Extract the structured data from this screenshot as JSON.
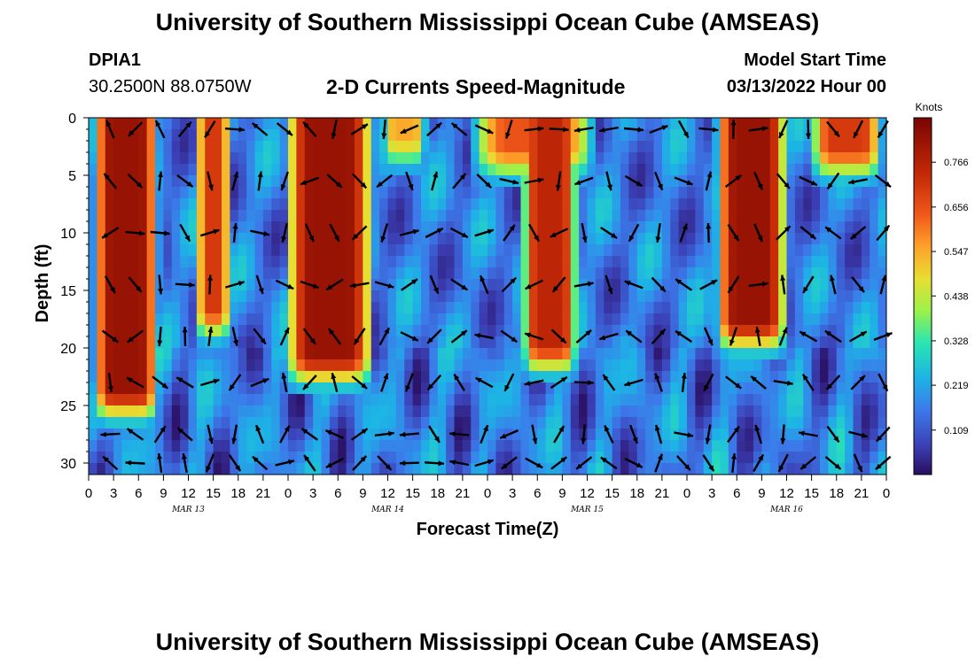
{
  "header": {
    "title": "University of Southern Mississippi Ocean Cube (AMSEAS)",
    "station": "DPIA1",
    "coords": "30.2500N  88.0750W",
    "chart_title": "2-D Currents Speed-Magnitude",
    "model_start_label": "Model Start Time",
    "model_start_value": "03/13/2022 Hour 00"
  },
  "footer_title": "University of Southern Mississippi Ocean Cube (AMSEAS)",
  "chart_data": {
    "type": "heatmap",
    "title": "2-D Currents Speed-Magnitude",
    "xlabel": "Forecast Time(Z)",
    "ylabel": "Depth (ft)",
    "colorbar_label": "Knots",
    "colorbar_ticks": [
      "0.109",
      "0.219",
      "0.328",
      "0.438",
      "0.547",
      "0.656",
      "0.766"
    ],
    "colorbar_range": [
      0,
      0.875
    ],
    "x_ticks": [
      "0",
      "3",
      "6",
      "9",
      "12",
      "15",
      "18",
      "21",
      "0",
      "3",
      "6",
      "9",
      "12",
      "15",
      "18",
      "21",
      "0",
      "3",
      "6",
      "9",
      "12",
      "15",
      "18",
      "21",
      "0",
      "3",
      "6",
      "9",
      "12",
      "15",
      "18",
      "21",
      "0"
    ],
    "date_labels": [
      {
        "label": "MAR 13",
        "hour": 12
      },
      {
        "label": "MAR 14",
        "hour": 36
      },
      {
        "label": "MAR 15",
        "hour": 60
      },
      {
        "label": "MAR 16",
        "hour": 84
      }
    ],
    "xlim_hours": [
      0,
      96
    ],
    "ylim": [
      31,
      0
    ],
    "y_ticks": [
      "0",
      "5",
      "10",
      "15",
      "20",
      "25",
      "30"
    ],
    "high_speed_bands": [
      {
        "start_hour": 1.5,
        "end_hour": 7.5,
        "max_depth": 24,
        "peak": 0.82
      },
      {
        "start_hour": 13.5,
        "end_hour": 16.5,
        "max_depth": 17,
        "peak": 0.7
      },
      {
        "start_hour": 25,
        "end_hour": 33,
        "max_depth": 21,
        "peak": 0.82
      },
      {
        "start_hour": 36,
        "end_hour": 40,
        "max_depth": 2,
        "peak": 0.55
      },
      {
        "start_hour": 48,
        "end_hour": 59,
        "max_depth": 3,
        "peak": 0.65
      },
      {
        "start_hour": 53,
        "end_hour": 58,
        "max_depth": 20,
        "peak": 0.75
      },
      {
        "start_hour": 76.5,
        "end_hour": 83,
        "max_depth": 18,
        "peak": 0.82
      },
      {
        "start_hour": 88,
        "end_hour": 94.5,
        "max_depth": 3,
        "peak": 0.7
      }
    ],
    "arrow_depths_ft": [
      1,
      5.5,
      10,
      14.5,
      19,
      23,
      27.5,
      30
    ],
    "arrow_interval_hours": 3
  }
}
